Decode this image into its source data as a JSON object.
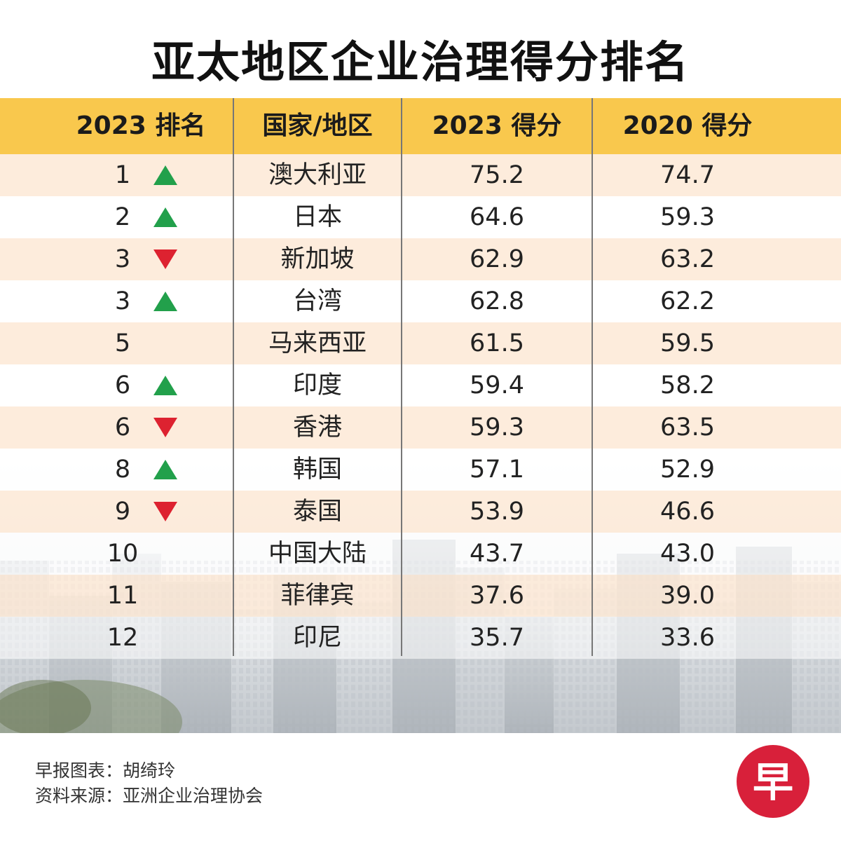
{
  "title": "亚太地区企业治理得分排名",
  "colors": {
    "header_bg": "#f9c84d",
    "row_odd": "#fde8d4",
    "arrow_up": "#22a04b",
    "arrow_down": "#dd2230",
    "logo": "#d8203a"
  },
  "chart_data": {
    "type": "table",
    "title": "亚太地区企业治理得分排名",
    "columns": [
      "2023 排名",
      "国家/地区",
      "2023 得分",
      "2020 得分"
    ],
    "rows": [
      {
        "rank": "1",
        "trend": "up",
        "country": "澳大利亚",
        "score_2023": "75.2",
        "score_2020": "74.7"
      },
      {
        "rank": "2",
        "trend": "up",
        "country": "日本",
        "score_2023": "64.6",
        "score_2020": "59.3"
      },
      {
        "rank": "3",
        "trend": "down",
        "country": "新加坡",
        "score_2023": "62.9",
        "score_2020": "63.2"
      },
      {
        "rank": "3",
        "trend": "up",
        "country": "台湾",
        "score_2023": "62.8",
        "score_2020": "62.2"
      },
      {
        "rank": "5",
        "trend": "none",
        "country": "马来西亚",
        "score_2023": "61.5",
        "score_2020": "59.5"
      },
      {
        "rank": "6",
        "trend": "up",
        "country": "印度",
        "score_2023": "59.4",
        "score_2020": "58.2"
      },
      {
        "rank": "6",
        "trend": "down",
        "country": "香港",
        "score_2023": "59.3",
        "score_2020": "63.5"
      },
      {
        "rank": "8",
        "trend": "up",
        "country": "韩国",
        "score_2023": "57.1",
        "score_2020": "52.9"
      },
      {
        "rank": "9",
        "trend": "down",
        "country": "泰国",
        "score_2023": "53.9",
        "score_2020": "46.6"
      },
      {
        "rank": "10",
        "trend": "none",
        "country": "中国大陆",
        "score_2023": "43.7",
        "score_2020": "43.0"
      },
      {
        "rank": "11",
        "trend": "none",
        "country": "菲律宾",
        "score_2023": "37.6",
        "score_2020": "39.0"
      },
      {
        "rank": "12",
        "trend": "none",
        "country": "印尼",
        "score_2023": "35.7",
        "score_2020": "33.6"
      }
    ]
  },
  "footer": {
    "credit": "早报图表：胡绮玲",
    "source": "资料来源：亚洲企业治理协会"
  },
  "logo": {
    "char": "早",
    "icon": "zaobao-logo-icon"
  }
}
